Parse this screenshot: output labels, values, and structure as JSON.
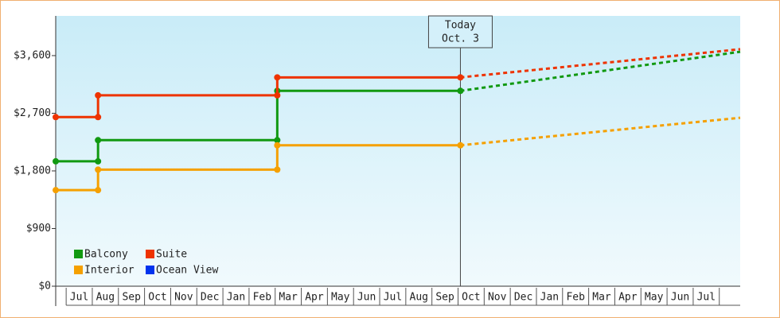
{
  "chart_data": {
    "type": "line",
    "x": [],
    "xlim": [
      -0.4,
      25.8
    ],
    "xticks": [
      {
        "value": 0.5,
        "label": "Jul"
      },
      {
        "value": 1.5,
        "label": "Aug"
      },
      {
        "value": 2.5,
        "label": "Sep"
      },
      {
        "value": 3.5,
        "label": "Oct"
      },
      {
        "value": 4.5,
        "label": "Nov"
      },
      {
        "value": 5.5,
        "label": "Dec"
      },
      {
        "value": 6.5,
        "label": "Jan"
      },
      {
        "value": 7.5,
        "label": "Feb"
      },
      {
        "value": 8.5,
        "label": "Mar"
      },
      {
        "value": 9.5,
        "label": "Apr"
      },
      {
        "value": 10.5,
        "label": "May"
      },
      {
        "value": 11.5,
        "label": "Jun"
      },
      {
        "value": 12.5,
        "label": "Jul"
      },
      {
        "value": 13.5,
        "label": "Aug"
      },
      {
        "value": 14.5,
        "label": "Sep"
      },
      {
        "value": 15.5,
        "label": "Oct"
      },
      {
        "value": 16.5,
        "label": "Nov"
      },
      {
        "value": 17.5,
        "label": "Dec"
      },
      {
        "value": 18.5,
        "label": "Jan"
      },
      {
        "value": 19.5,
        "label": "Feb"
      },
      {
        "value": 20.5,
        "label": "Mar"
      },
      {
        "value": 21.5,
        "label": "Apr"
      },
      {
        "value": 22.5,
        "label": "May"
      },
      {
        "value": 23.5,
        "label": "Jun"
      },
      {
        "value": 24.5,
        "label": "Jul"
      }
    ],
    "ylim": [
      0,
      4220
    ],
    "yticks": [
      {
        "value": 0,
        "label": "$0"
      },
      {
        "value": 900,
        "label": "$900"
      },
      {
        "value": 1800,
        "label": "$1,800"
      },
      {
        "value": 2700,
        "label": "$2,700"
      },
      {
        "value": 3600,
        "label": "$3,600"
      }
    ],
    "annotation": {
      "text": "Today",
      "date": "Oct. 3",
      "x": 15.09
    },
    "series": [
      {
        "name": "Balcony",
        "color": "#119911",
        "x": [
          -0.4,
          1.22,
          1.22,
          8.08,
          8.08,
          15.09,
          25.8
        ],
        "values": [
          1950,
          1950,
          2280,
          2280,
          3050,
          3050,
          3660
        ]
      },
      {
        "name": "Suite",
        "color": "#ee3300",
        "x": [
          -0.4,
          1.22,
          1.22,
          8.08,
          8.08,
          15.09,
          25.8
        ],
        "values": [
          2640,
          2640,
          2980,
          2980,
          3260,
          3260,
          3700
        ]
      },
      {
        "name": "Interior",
        "color": "#f5a000",
        "x": [
          -0.4,
          1.22,
          1.22,
          8.08,
          8.08,
          15.09,
          25.8
        ],
        "values": [
          1500,
          1500,
          1820,
          1820,
          2200,
          2200,
          2630
        ]
      },
      {
        "name": "Ocean View",
        "color": "#0033ee",
        "x": [],
        "values": []
      }
    ]
  }
}
